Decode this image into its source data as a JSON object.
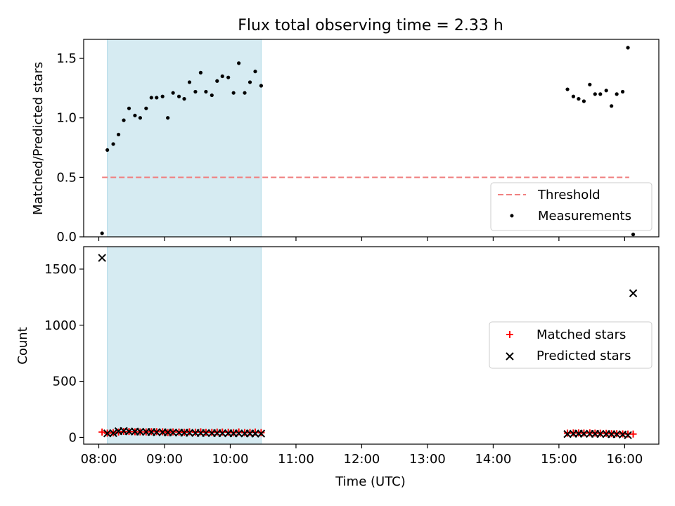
{
  "title": "Flux total observing time = 2.33 h",
  "colors": {
    "threshold": "#f08080",
    "measurement": "#000000",
    "matched": "#ff0000",
    "predicted": "#000000",
    "span": "#add8e6"
  },
  "chart_data": [
    {
      "type": "scatter",
      "panel": "top",
      "ylabel": "Matched/Predicted stars",
      "xlim": [
        7.77,
        16.52
      ],
      "ylim": [
        0,
        1.66
      ],
      "yticks": [
        0,
        0.5,
        1.0,
        1.5
      ],
      "ytick_labels": [
        "0.0",
        "0.5",
        "1.0",
        "1.5"
      ],
      "shaded_span": [
        8.13,
        10.47
      ],
      "threshold": {
        "label": "Threshold",
        "value": 0.5,
        "x_range": [
          8.05,
          16.07
        ]
      },
      "measurements_label": "Measurements",
      "legend_position": "lower-right",
      "measurements": [
        [
          8.05,
          0.03
        ],
        [
          8.13,
          0.73
        ],
        [
          8.22,
          0.78
        ],
        [
          8.3,
          0.86
        ],
        [
          8.38,
          0.98
        ],
        [
          8.46,
          1.08
        ],
        [
          8.55,
          1.02
        ],
        [
          8.63,
          1.0
        ],
        [
          8.72,
          1.08
        ],
        [
          8.8,
          1.17
        ],
        [
          8.88,
          1.17
        ],
        [
          8.97,
          1.18
        ],
        [
          9.05,
          1.0
        ],
        [
          9.13,
          1.21
        ],
        [
          9.22,
          1.18
        ],
        [
          9.3,
          1.16
        ],
        [
          9.38,
          1.3
        ],
        [
          9.47,
          1.22
        ],
        [
          9.55,
          1.38
        ],
        [
          9.63,
          1.22
        ],
        [
          9.72,
          1.19
        ],
        [
          9.8,
          1.31
        ],
        [
          9.88,
          1.35
        ],
        [
          9.97,
          1.34
        ],
        [
          10.05,
          1.21
        ],
        [
          10.13,
          1.46
        ],
        [
          10.22,
          1.21
        ],
        [
          10.3,
          1.3
        ],
        [
          10.38,
          1.39
        ],
        [
          10.47,
          1.27
        ],
        [
          15.13,
          1.24
        ],
        [
          15.22,
          1.18
        ],
        [
          15.3,
          1.16
        ],
        [
          15.38,
          1.14
        ],
        [
          15.47,
          1.28
        ],
        [
          15.55,
          1.2
        ],
        [
          15.63,
          1.2
        ],
        [
          15.72,
          1.23
        ],
        [
          15.8,
          1.1
        ],
        [
          15.88,
          1.2
        ],
        [
          15.97,
          1.22
        ],
        [
          16.05,
          1.59
        ],
        [
          16.13,
          0.02
        ]
      ]
    },
    {
      "type": "scatter",
      "panel": "bottom",
      "xlabel": "Time (UTC)",
      "ylabel": "Count",
      "xlim": [
        7.77,
        16.52
      ],
      "ylim": [
        -60,
        1700
      ],
      "yticks": [
        0,
        500,
        1000,
        1500
      ],
      "ytick_labels": [
        "0",
        "500",
        "1000",
        "1500"
      ],
      "xticks": [
        8,
        9,
        10,
        11,
        12,
        13,
        14,
        15,
        16
      ],
      "xtick_labels": [
        "08:00",
        "09:00",
        "10:00",
        "11:00",
        "12:00",
        "13:00",
        "14:00",
        "15:00",
        "16:00"
      ],
      "shaded_span": [
        8.13,
        10.47
      ],
      "legend_position": "center-right",
      "series": [
        {
          "name": "Matched stars",
          "marker": "plus",
          "points": [
            [
              8.05,
              48
            ],
            [
              8.13,
              38
            ],
            [
              8.22,
              42
            ],
            [
              8.3,
              48
            ],
            [
              8.38,
              53
            ],
            [
              8.46,
              52
            ],
            [
              8.55,
              50
            ],
            [
              8.63,
              49
            ],
            [
              8.72,
              49
            ],
            [
              8.8,
              51
            ],
            [
              8.88,
              51
            ],
            [
              8.97,
              50
            ],
            [
              9.05,
              44
            ],
            [
              9.13,
              49
            ],
            [
              9.22,
              48
            ],
            [
              9.3,
              46
            ],
            [
              9.38,
              50
            ],
            [
              9.47,
              47
            ],
            [
              9.55,
              50
            ],
            [
              9.63,
              46
            ],
            [
              9.72,
              45
            ],
            [
              9.8,
              48
            ],
            [
              9.88,
              48
            ],
            [
              9.97,
              47
            ],
            [
              10.05,
              43
            ],
            [
              10.13,
              49
            ],
            [
              10.22,
              43
            ],
            [
              10.3,
              45
            ],
            [
              10.38,
              48
            ],
            [
              10.47,
              43
            ],
            [
              15.13,
              38
            ],
            [
              15.22,
              40
            ],
            [
              15.3,
              40
            ],
            [
              15.38,
              39
            ],
            [
              15.47,
              41
            ],
            [
              15.55,
              38
            ],
            [
              15.63,
              37
            ],
            [
              15.72,
              36
            ],
            [
              15.8,
              33
            ],
            [
              15.88,
              33
            ],
            [
              15.97,
              31
            ],
            [
              16.05,
              30
            ],
            [
              16.13,
              30
            ]
          ]
        },
        {
          "name": "Predicted stars",
          "marker": "x",
          "points": [
            [
              8.05,
              1600
            ],
            [
              8.13,
              36
            ],
            [
              8.22,
              38
            ],
            [
              8.3,
              55
            ],
            [
              8.38,
              57
            ],
            [
              8.46,
              53
            ],
            [
              8.55,
              52
            ],
            [
              8.63,
              51
            ],
            [
              8.72,
              49
            ],
            [
              8.8,
              48
            ],
            [
              8.88,
              47
            ],
            [
              8.97,
              46
            ],
            [
              9.05,
              45
            ],
            [
              9.13,
              44
            ],
            [
              9.22,
              43
            ],
            [
              9.3,
              42
            ],
            [
              9.38,
              41
            ],
            [
              9.47,
              40
            ],
            [
              9.55,
              39
            ],
            [
              9.63,
              39
            ],
            [
              9.72,
              38
            ],
            [
              9.8,
              38
            ],
            [
              9.88,
              37
            ],
            [
              9.97,
              37
            ],
            [
              10.05,
              36
            ],
            [
              10.13,
              36
            ],
            [
              10.22,
              35
            ],
            [
              10.3,
              35
            ],
            [
              10.38,
              34
            ],
            [
              10.47,
              34
            ],
            [
              15.13,
              30
            ],
            [
              15.22,
              33
            ],
            [
              15.3,
              34
            ],
            [
              15.38,
              33
            ],
            [
              15.47,
              32
            ],
            [
              15.55,
              32
            ],
            [
              15.63,
              31
            ],
            [
              15.72,
              30
            ],
            [
              15.8,
              29
            ],
            [
              15.88,
              28
            ],
            [
              15.97,
              26
            ],
            [
              16.05,
              20
            ],
            [
              16.13,
              1285
            ]
          ]
        }
      ]
    }
  ]
}
